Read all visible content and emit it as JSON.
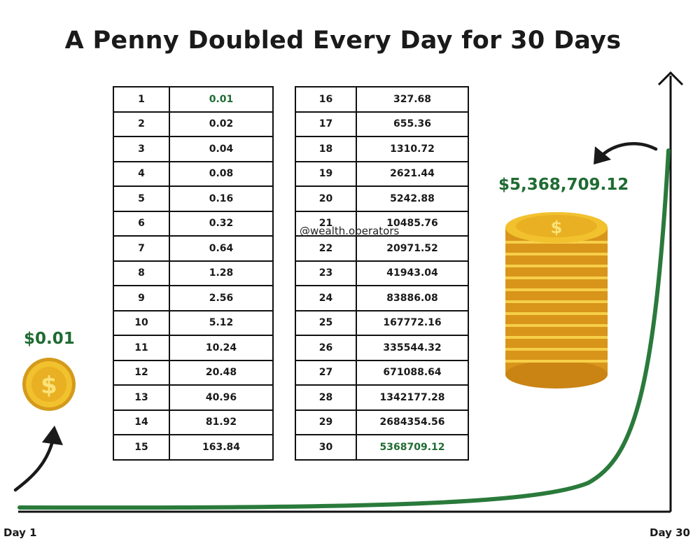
{
  "title": "A Penny Doubled Every Day for 30 Days",
  "table_left": {
    "rows": [
      {
        "day": "1",
        "value": "0.01"
      },
      {
        "day": "2",
        "value": "0.02"
      },
      {
        "day": "3",
        "value": "0.04"
      },
      {
        "day": "4",
        "value": "0.08"
      },
      {
        "day": "5",
        "value": "0.16"
      },
      {
        "day": "6",
        "value": "0.32"
      },
      {
        "day": "7",
        "value": "0.64"
      },
      {
        "day": "8",
        "value": "1.28"
      },
      {
        "day": "9",
        "value": "2.56"
      },
      {
        "day": "10",
        "value": "5.12"
      },
      {
        "day": "11",
        "value": "10.24"
      },
      {
        "day": "12",
        "value": "20.48"
      },
      {
        "day": "13",
        "value": "40.96"
      },
      {
        "day": "14",
        "value": "81.92"
      },
      {
        "day": "15",
        "value": "163.84"
      }
    ]
  },
  "table_right": {
    "rows": [
      {
        "day": "16",
        "value": "327.68"
      },
      {
        "day": "17",
        "value": "655.36"
      },
      {
        "day": "18",
        "value": "1310.72"
      },
      {
        "day": "19",
        "value": "2621.44"
      },
      {
        "day": "20",
        "value": "5242.88"
      },
      {
        "day": "21",
        "value": "10485.76"
      },
      {
        "day": "22",
        "value": "20971.52"
      },
      {
        "day": "23",
        "value": "41943.04"
      },
      {
        "day": "24",
        "value": "83886.08"
      },
      {
        "day": "25",
        "value": "167772.16"
      },
      {
        "day": "26",
        "value": "335544.32"
      },
      {
        "day": "27",
        "value": "671088.64"
      },
      {
        "day": "28",
        "value": "1342177.28"
      },
      {
        "day": "29",
        "value": "2684354.56"
      },
      {
        "day": "30",
        "value": "5368709.12"
      }
    ]
  },
  "watermark": "@wealth.operators",
  "start_amount": "$0.01",
  "end_amount": "$5,368,709.12",
  "axis": {
    "start_label": "Day 1",
    "end_label": "Day 30"
  },
  "colors": {
    "accent_green": "#1f6b32",
    "curve_green": "#2a7a3b",
    "coin_gold": "#f2c12e",
    "coin_dark": "#d49a1b"
  },
  "icons": {
    "single_coin": "dollar-coin-icon",
    "coin_stack": "coin-stack-icon"
  }
}
